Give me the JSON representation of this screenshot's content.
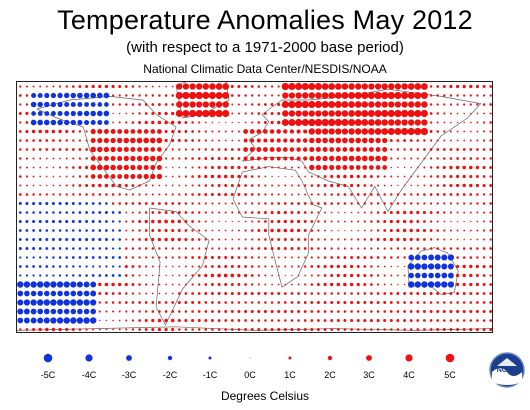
{
  "title": "Temperature Anomalies May 2012",
  "subtitle": "(with respect to a 1971-2000 base period)",
  "source": "National Climatic Data Center/NESDIS/NOAA",
  "legend": {
    "labels": [
      "-5C",
      "-4C",
      "-3C",
      "-2C",
      "-1C",
      "0C",
      "1C",
      "2C",
      "3C",
      "4C",
      "5C"
    ],
    "values": [
      -5,
      -4,
      -3,
      -2,
      -1,
      0,
      1,
      2,
      3,
      4,
      5
    ],
    "units": "Degrees Celsius"
  },
  "colors": {
    "warm": "#ee1111",
    "cold": "#1133dd",
    "land_outline": "#555555",
    "frame": "#222222"
  },
  "logo": {
    "text": "NOAA",
    "icon": "noaa-logo-icon"
  },
  "chart_data": {
    "type": "scatter",
    "description_units": "anomaly in degrees Celsius; dot size proportional to magnitude, red warm, blue cold",
    "lon_range": [
      -180,
      180
    ],
    "lat_range": [
      -60,
      80
    ],
    "regions": [
      {
        "name": "North America (warm)",
        "lon": [
          -125,
          -70
        ],
        "lat": [
          25,
          55
        ],
        "anomaly": 2.5
      },
      {
        "name": "Western Canada (cold)",
        "lon": [
          -170,
          -110
        ],
        "lat": [
          55,
          75
        ],
        "anomaly": -2.5
      },
      {
        "name": "Greenland (warm)",
        "lon": [
          -60,
          -20
        ],
        "lat": [
          60,
          82
        ],
        "anomaly": 3.5
      },
      {
        "name": "Eurasia North (warm)",
        "lon": [
          20,
          130
        ],
        "lat": [
          50,
          80
        ],
        "anomaly": 3.5
      },
      {
        "name": "Europe (warm)",
        "lon": [
          -10,
          40
        ],
        "lat": [
          35,
          55
        ],
        "anomaly": 2.0
      },
      {
        "name": "Central Asia (warm)",
        "lon": [
          40,
          100
        ],
        "lat": [
          30,
          50
        ],
        "anomaly": 2.5
      },
      {
        "name": "Tropical Pacific East (cold)",
        "lon": [
          -180,
          -110
        ],
        "lat": [
          -15,
          15
        ],
        "anomaly": -1.0
      },
      {
        "name": "South Pacific (cold)",
        "lon": [
          -180,
          -120
        ],
        "lat": [
          -55,
          -30
        ],
        "anomaly": -3.0
      },
      {
        "name": "Australia (cold)",
        "lon": [
          115,
          150
        ],
        "lat": [
          -38,
          -15
        ],
        "anomaly": -3.0
      },
      {
        "name": "Southern Ocean (mixed warm)",
        "lon": [
          -60,
          180
        ],
        "lat": [
          -58,
          -35
        ],
        "anomaly": 1.0
      }
    ]
  }
}
